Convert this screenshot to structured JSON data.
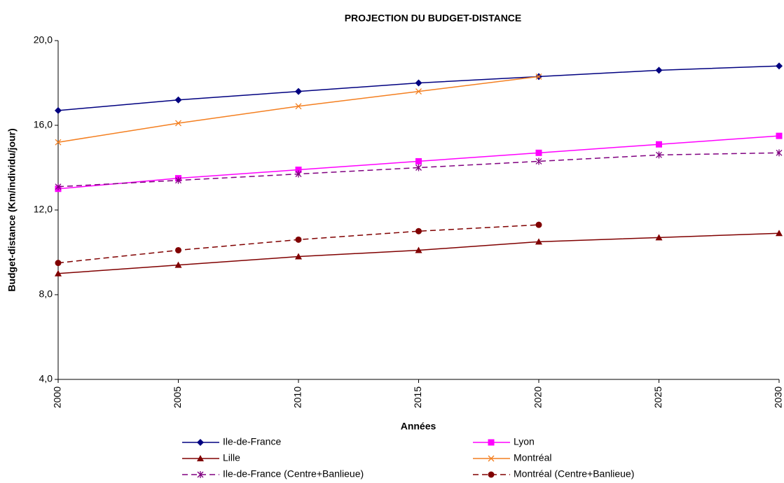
{
  "chart_data": {
    "type": "line",
    "title": "PROJECTION DU BUDGET-DISTANCE",
    "x_label": "Années",
    "y_label": "Budget-distance (Km/individu/jour)",
    "x": [
      2000,
      2005,
      2010,
      2015,
      2020,
      2025,
      2030
    ],
    "xlim": [
      2000,
      2030
    ],
    "xticks": [
      2000,
      2005,
      2010,
      2015,
      2020,
      2025,
      2030
    ],
    "ylim": [
      4,
      20
    ],
    "yticks": [
      {
        "value": 4,
        "label": "4,0"
      },
      {
        "value": 8,
        "label": "8,0"
      },
      {
        "value": 12,
        "label": "12,0"
      },
      {
        "value": 16,
        "label": "16,0"
      },
      {
        "value": 20,
        "label": "20,0"
      }
    ],
    "grid": false,
    "series": [
      {
        "name": "Ile-de-France",
        "color": "#000080",
        "marker": "diamond",
        "dashed": false,
        "values": [
          16.7,
          17.2,
          17.6,
          18.0,
          18.3,
          18.6,
          18.8
        ]
      },
      {
        "name": "Lyon",
        "color": "#ff00ff",
        "marker": "square",
        "dashed": false,
        "values": [
          13.0,
          13.5,
          13.9,
          14.3,
          14.7,
          15.1,
          15.5
        ]
      },
      {
        "name": "Lille",
        "color": "#800000",
        "marker": "triangle",
        "dashed": false,
        "values": [
          9.0,
          9.4,
          9.8,
          10.1,
          10.5,
          10.7,
          10.9
        ]
      },
      {
        "name": "Montréal",
        "color": "#f47f20",
        "marker": "x",
        "dashed": false,
        "values": [
          15.2,
          16.1,
          16.9,
          17.6,
          18.3,
          null,
          null
        ]
      },
      {
        "name": "Ile-de-France (Centre+Banlieue)",
        "color": "#800080",
        "marker": "star",
        "dashed": true,
        "values": [
          13.1,
          13.4,
          13.7,
          14.0,
          14.3,
          14.6,
          14.7
        ]
      },
      {
        "name": "Montréal (Centre+Banlieue)",
        "color": "#800000",
        "marker": "circle",
        "dashed": true,
        "values": [
          9.5,
          10.1,
          10.6,
          11.0,
          11.3,
          null,
          null
        ]
      }
    ]
  }
}
